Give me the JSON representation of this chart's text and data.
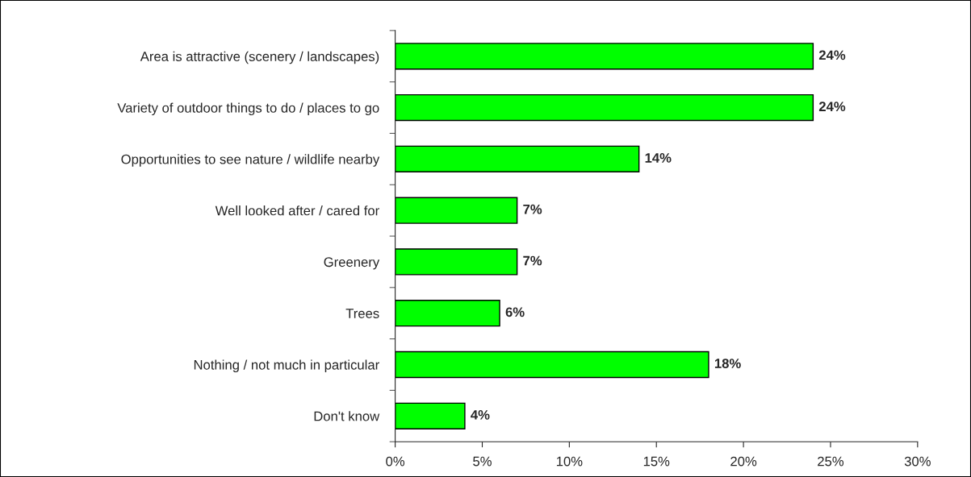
{
  "chart_data": {
    "type": "bar",
    "orientation": "horizontal",
    "categories": [
      "Area is attractive (scenery / landscapes)",
      "Variety of outdoor things to do / places to go",
      "Opportunities to see nature / wildlife nearby",
      "Well looked after / cared for",
      "Greenery",
      "Trees",
      "Nothing / not much in particular",
      "Don't know"
    ],
    "values": [
      24,
      24,
      14,
      7,
      7,
      6,
      18,
      4
    ],
    "value_labels": [
      "24%",
      "24%",
      "14%",
      "7%",
      "7%",
      "6%",
      "18%",
      "4%"
    ],
    "color": "#00ff00",
    "xlim": [
      0,
      30
    ],
    "xticks": [
      {
        "value": 0,
        "label": "0%"
      },
      {
        "value": 5,
        "label": "5%"
      },
      {
        "value": 10,
        "label": "10%"
      },
      {
        "value": 15,
        "label": "15%"
      },
      {
        "value": 20,
        "label": "20%"
      },
      {
        "value": 25,
        "label": "25%"
      },
      {
        "value": 30,
        "label": "30%"
      }
    ],
    "grid": false
  }
}
